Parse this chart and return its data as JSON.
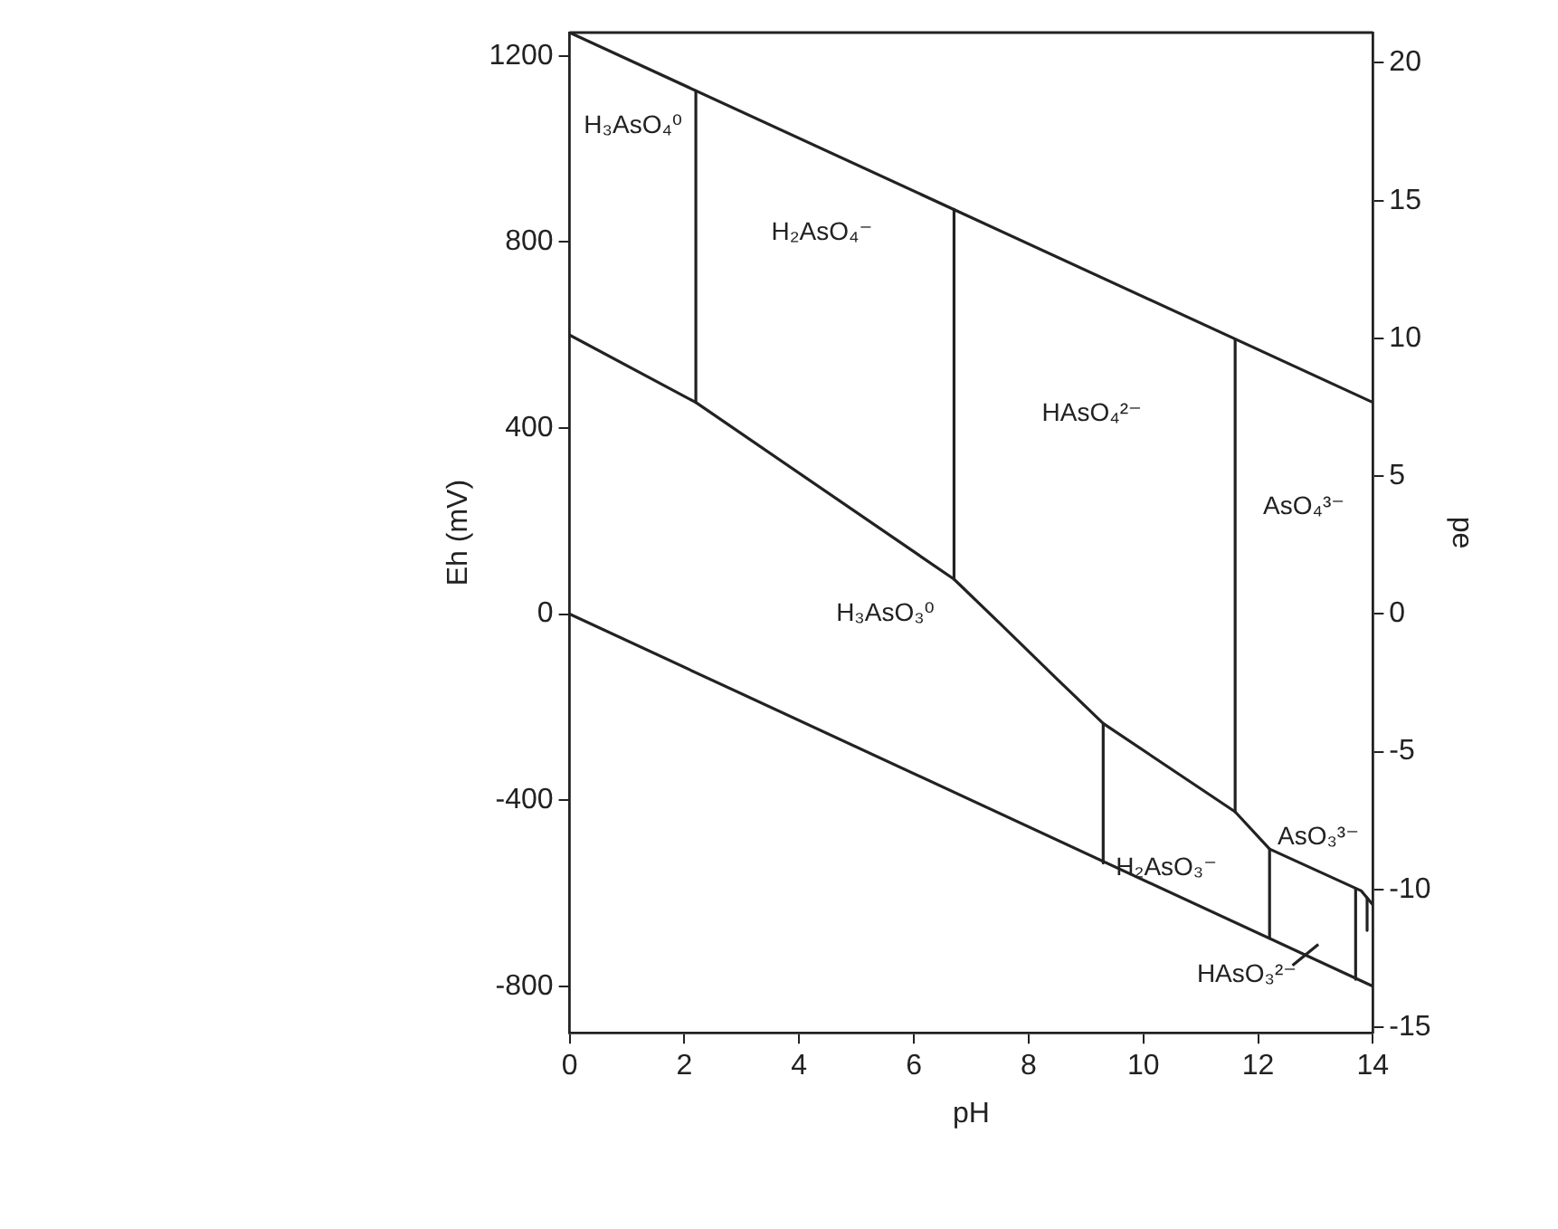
{
  "chart_data": {
    "type": "line",
    "xlabel": "pH",
    "ylabel": "Eh (mV)",
    "y2label": "pe",
    "xlim": [
      0,
      14
    ],
    "xticks": [
      0,
      2,
      4,
      6,
      8,
      10,
      12,
      14
    ],
    "ylim": [
      -900,
      1250
    ],
    "yticks": [
      -800,
      -400,
      0,
      400,
      800,
      1200
    ],
    "y2lim": [
      -15.2,
      21.1
    ],
    "y2ticks": [
      -15,
      -10,
      -5,
      0,
      5,
      10,
      15,
      20
    ],
    "grid": false,
    "legend": false,
    "marker": "none",
    "line_style": "solid",
    "series": [
      {
        "color": "#222222",
        "x": [
          0,
          14
        ],
        "values": [
          1250,
          455
        ]
      },
      {
        "color": "#222222",
        "x": [
          0,
          14
        ],
        "values": [
          0,
          -800
        ]
      },
      {
        "color": "#222222",
        "x": [
          0,
          2.2,
          6.7,
          7.5,
          8.5,
          9.3,
          11.6,
          12.2,
          13.8,
          14
        ],
        "values": [
          600,
          455,
          75,
          -20,
          -140,
          -235,
          -425,
          -505,
          -595,
          -625
        ]
      },
      {
        "color": "#222222",
        "x": [
          2.2,
          2.2
        ],
        "values": [
          1125,
          455
        ]
      },
      {
        "color": "#222222",
        "x": [
          6.7,
          6.7
        ],
        "values": [
          870,
          75
        ]
      },
      {
        "color": "#222222",
        "x": [
          11.6,
          11.6
        ],
        "values": [
          590,
          -425
        ]
      },
      {
        "color": "#222222",
        "x": [
          9.3,
          9.3
        ],
        "values": [
          -235,
          -535
        ]
      },
      {
        "color": "#222222",
        "x": [
          12.2,
          12.2
        ],
        "values": [
          -505,
          -695
        ]
      },
      {
        "color": "#222222",
        "x": [
          13.7,
          13.7
        ],
        "values": [
          -590,
          -785
        ]
      },
      {
        "color": "#222222",
        "x": [
          13.9,
          13.9
        ],
        "values": [
          -610,
          -680
        ]
      },
      {
        "color": "#222222",
        "x": [
          12.6,
          13.05
        ],
        "values": [
          -755,
          -710
        ]
      }
    ],
    "annotations": [
      "H₃AsO₄⁰",
      "H₂AsO₄⁻",
      "HAsO₄²⁻",
      "AsO₄³⁻",
      "H₃AsO₃⁰",
      "H₂AsO₃⁻",
      "AsO₃³⁻",
      "HAsO₃²⁻"
    ]
  }
}
